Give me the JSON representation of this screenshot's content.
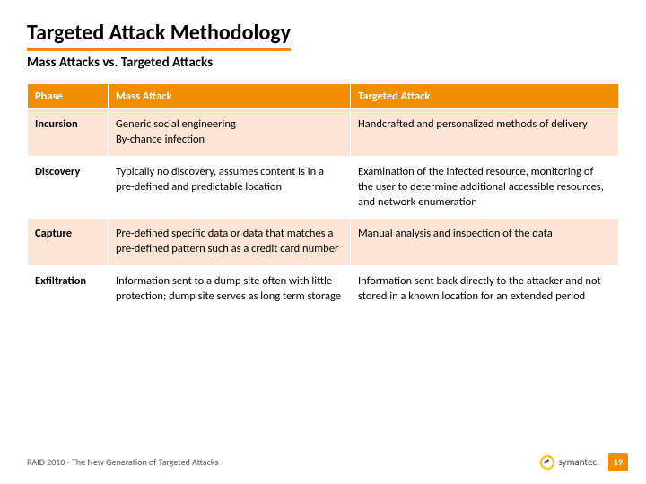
{
  "title": "Targeted Attack Methodology",
  "subtitle": "Mass Attacks vs. Targeted Attacks",
  "table": {
    "headers": [
      "Phase",
      "Mass Attack",
      "Targeted Attack"
    ],
    "rows": [
      {
        "phase": "Incursion",
        "mass": "Generic social engineering\nBy-chance infection",
        "targeted": "Handcrafted and personalized methods of delivery"
      },
      {
        "phase": "Discovery",
        "mass": "Typically no discovery, assumes content is in a pre-defined and predictable location",
        "targeted": "Examination of the infected resource, monitoring of the user to determine additional accessible resources, and network enumeration"
      },
      {
        "phase": "Capture",
        "mass": "Pre-defined specific data or data that matches a pre-defined pattern such as a credit card number",
        "targeted": "Manual analysis and inspection of the data"
      },
      {
        "phase": "Exfiltration",
        "mass": "Information sent to a dump site often with little protection; dump site serves as long term storage",
        "targeted": "Information sent back directly to the attacker and not stored in a known location for an extended period"
      }
    ]
  },
  "footer": {
    "text": "RAID 2010 - The New Generation of Targeted Attacks",
    "brand": "symantec.",
    "page": "19"
  },
  "colors": {
    "accent": "#f28c00",
    "row_alt": "#fbe5d6",
    "logo_ring": "#f5bd1f"
  }
}
